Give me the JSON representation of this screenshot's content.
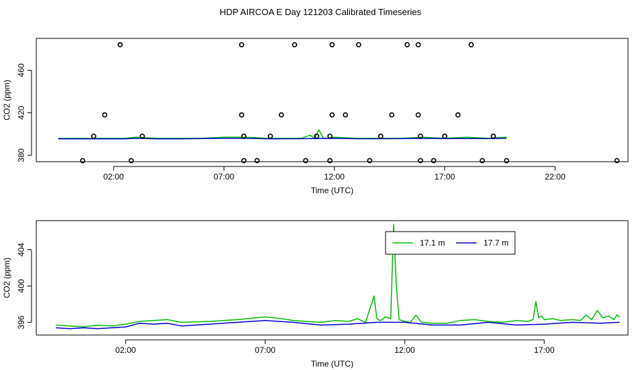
{
  "title": "HDP AIRCOA E  Day 121203  Calibrated Timeseries",
  "chart_data": [
    {
      "type": "scatter",
      "xlabel": "Time (UTC)",
      "ylabel": "CO2 (ppm)",
      "xlim": [
        -1.5,
        25.3
      ],
      "ylim": [
        374,
        490
      ],
      "xticks": [
        {
          "v": 2,
          "label": "02:00"
        },
        {
          "v": 7,
          "label": "07:00"
        },
        {
          "v": 12,
          "label": "12:00"
        },
        {
          "v": 17,
          "label": "17:00"
        },
        {
          "v": 22,
          "label": "22:00"
        }
      ],
      "yticks": [
        {
          "v": 380,
          "label": "380"
        },
        {
          "v": 420,
          "label": "420"
        },
        {
          "v": 460,
          "label": "460"
        }
      ],
      "points": [
        {
          "x": 2.3,
          "y": 484
        },
        {
          "x": 7.8,
          "y": 484
        },
        {
          "x": 10.2,
          "y": 484
        },
        {
          "x": 11.9,
          "y": 484
        },
        {
          "x": 13.1,
          "y": 484
        },
        {
          "x": 15.3,
          "y": 484
        },
        {
          "x": 15.8,
          "y": 484
        },
        {
          "x": 18.2,
          "y": 484
        },
        {
          "x": 1.6,
          "y": 418
        },
        {
          "x": 7.8,
          "y": 418
        },
        {
          "x": 9.6,
          "y": 418
        },
        {
          "x": 11.9,
          "y": 418
        },
        {
          "x": 12.5,
          "y": 418
        },
        {
          "x": 14.6,
          "y": 418
        },
        {
          "x": 15.8,
          "y": 418
        },
        {
          "x": 17.6,
          "y": 418
        },
        {
          "x": 1.1,
          "y": 398
        },
        {
          "x": 3.3,
          "y": 398
        },
        {
          "x": 7.9,
          "y": 398
        },
        {
          "x": 9.1,
          "y": 398
        },
        {
          "x": 11.2,
          "y": 398
        },
        {
          "x": 11.8,
          "y": 398
        },
        {
          "x": 14.1,
          "y": 398
        },
        {
          "x": 15.9,
          "y": 398
        },
        {
          "x": 17.0,
          "y": 398
        },
        {
          "x": 19.2,
          "y": 398
        },
        {
          "x": 0.6,
          "y": 375
        },
        {
          "x": 2.8,
          "y": 375
        },
        {
          "x": 7.9,
          "y": 375
        },
        {
          "x": 8.5,
          "y": 375
        },
        {
          "x": 10.7,
          "y": 375
        },
        {
          "x": 11.8,
          "y": 375
        },
        {
          "x": 13.6,
          "y": 375
        },
        {
          "x": 15.9,
          "y": 375
        },
        {
          "x": 16.5,
          "y": 375
        },
        {
          "x": 18.7,
          "y": 375
        },
        {
          "x": 19.8,
          "y": 375
        },
        {
          "x": 24.8,
          "y": 375
        }
      ],
      "series": [
        {
          "color": "#00bb00",
          "x": [
            -0.5,
            1,
            2.5,
            3,
            4,
            5,
            6,
            7,
            8,
            9,
            10,
            10.5,
            10.9,
            11.1,
            11.3,
            11.5,
            11.7,
            12,
            13,
            14,
            15,
            16,
            17,
            18,
            19,
            19.8
          ],
          "y": [
            396,
            396,
            396,
            397,
            396,
            396,
            396,
            397,
            397,
            396,
            396,
            396,
            399,
            396,
            404,
            396,
            396,
            397,
            396,
            396,
            396,
            397,
            396,
            397,
            396,
            397
          ]
        },
        {
          "color": "#0000cc",
          "x": [
            -0.5,
            1,
            2.5,
            3,
            4,
            5,
            6,
            7,
            8,
            9,
            10,
            11,
            12,
            13,
            14,
            15,
            16,
            17,
            18,
            19,
            19.8
          ],
          "y": [
            395.5,
            395.5,
            395.5,
            396,
            395.5,
            395.5,
            395.8,
            396,
            396,
            395.5,
            395.6,
            395.8,
            396,
            395.6,
            395.6,
            395.8,
            395.9,
            395.7,
            395.8,
            395.7,
            396
          ]
        }
      ]
    },
    {
      "type": "line",
      "xlabel": "Time (UTC)",
      "ylabel": "CO2 (ppm)",
      "xlim": [
        -1.2,
        20.0
      ],
      "ylim": [
        394.6,
        407.2
      ],
      "xticks": [
        {
          "v": 2,
          "label": "02:00"
        },
        {
          "v": 7,
          "label": "07:00"
        },
        {
          "v": 12,
          "label": "12:00"
        },
        {
          "v": 17,
          "label": "17:00"
        }
      ],
      "yticks": [
        {
          "v": 396,
          "label": "396"
        },
        {
          "v": 400,
          "label": "400"
        },
        {
          "v": 404,
          "label": "404"
        }
      ],
      "legend": "top-right",
      "series": [
        {
          "name": "17.1 m",
          "color": "#00bb00",
          "x": [
            -0.5,
            0,
            0.5,
            1,
            1.5,
            2,
            2.5,
            3,
            3.5,
            4,
            5,
            6,
            7,
            7.3,
            7.6,
            8,
            8.5,
            9,
            9.5,
            10,
            10.3,
            10.6,
            10.9,
            11.0,
            11.1,
            11.2,
            11.3,
            11.5,
            11.6,
            11.7,
            11.8,
            12,
            12.2,
            12.4,
            12.6,
            13,
            13.5,
            14,
            14.5,
            15,
            15.5,
            16,
            16.4,
            16.6,
            16.7,
            16.8,
            16.9,
            17,
            17.3,
            17.6,
            18,
            18.3,
            18.5,
            18.7,
            18.9,
            19.1,
            19.3,
            19.5,
            19.6,
            19.7
          ],
          "y": [
            395.7,
            395.6,
            395.5,
            395.7,
            395.6,
            395.8,
            396.1,
            396.2,
            396.3,
            396.0,
            396.1,
            396.3,
            396.6,
            396.5,
            396.4,
            396.2,
            396.1,
            396.0,
            396.2,
            396.1,
            396.4,
            396.0,
            398.9,
            396.5,
            396.2,
            396.3,
            396.6,
            396.4,
            406.8,
            400.0,
            396.3,
            396.1,
            396.0,
            396.8,
            396.0,
            395.9,
            395.9,
            396.2,
            396.3,
            396.1,
            396.0,
            396.2,
            396.1,
            396.3,
            398.3,
            396.5,
            396.7,
            396.3,
            396.4,
            396.2,
            396.3,
            396.2,
            396.8,
            396.3,
            397.3,
            396.5,
            396.7,
            396.3,
            396.8,
            396.6
          ]
        },
        {
          "name": "17.7 m",
          "color": "#0000cc",
          "x": [
            -0.5,
            0,
            0.5,
            1,
            1.5,
            2,
            2.5,
            3,
            3.5,
            4,
            5,
            6,
            7,
            7.5,
            8,
            9,
            10,
            11,
            12,
            13,
            14,
            15,
            16,
            17,
            18,
            19,
            19.7
          ],
          "y": [
            395.4,
            395.3,
            395.4,
            395.3,
            395.4,
            395.5,
            395.9,
            395.8,
            395.9,
            395.6,
            395.8,
            396.0,
            396.2,
            396.1,
            396.0,
            395.7,
            395.8,
            396.0,
            396.0,
            395.7,
            395.7,
            396.0,
            395.7,
            395.8,
            396.0,
            395.9,
            396.0
          ]
        }
      ]
    }
  ]
}
